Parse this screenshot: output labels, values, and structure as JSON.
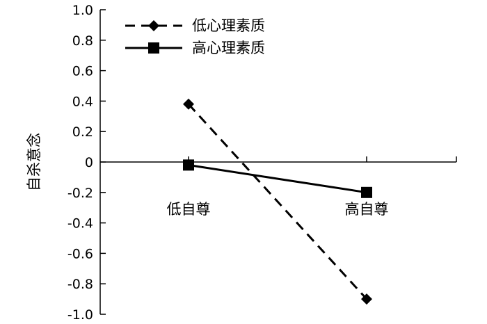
{
  "chart_data": {
    "type": "line",
    "ylabel": "自杀意念",
    "ylim": [
      -1.0,
      1.0
    ],
    "y_ticks": [
      "1.0",
      "0.8",
      "0.6",
      "0.4",
      "0.2",
      "0",
      "-0.2",
      "-0.4",
      "-0.6",
      "-0.8",
      "-1.0"
    ],
    "categories": [
      "低自尊",
      "高自尊"
    ],
    "legend_position": "top-left",
    "series": [
      {
        "name": "低心理素质",
        "values": [
          0.38,
          -0.9
        ],
        "line_style": "dashed",
        "marker": "diamond",
        "color": "#000000"
      },
      {
        "name": "高心理素质",
        "values": [
          -0.02,
          -0.2
        ],
        "line_style": "solid",
        "marker": "square",
        "color": "#000000"
      }
    ]
  }
}
